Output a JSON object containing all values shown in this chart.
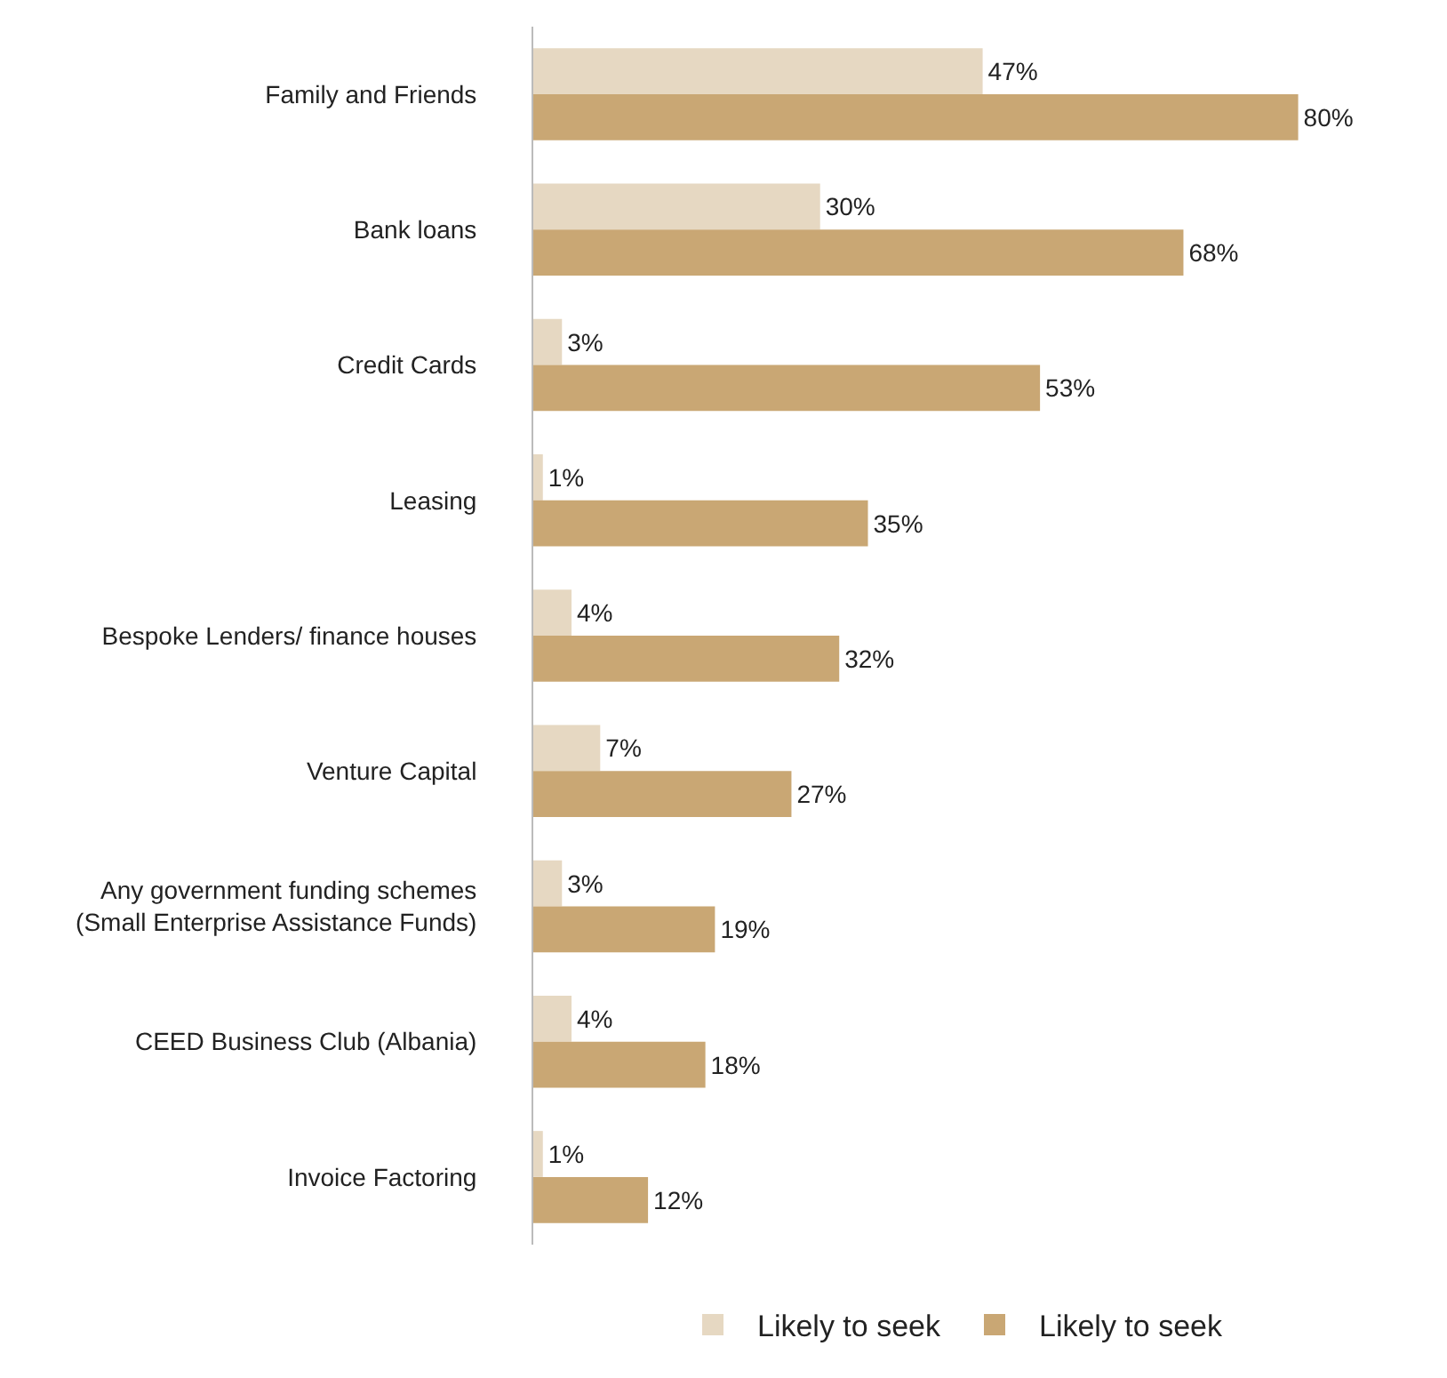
{
  "chart_data": {
    "type": "bar",
    "orientation": "horizontal",
    "categories": [
      "Family and Friends",
      "Bank loans",
      "Credit Cards",
      "Leasing",
      "Bespoke Lenders/ finance houses",
      "Venture Capital",
      "Any government funding schemes\n(Small Enterprise Assistance Funds)",
      "CEED Business Club (Albania)",
      "Invoice Factoring"
    ],
    "series": [
      {
        "name": "Likely to seek",
        "color": "#e6d8c2",
        "values": [
          47,
          30,
          3,
          1,
          4,
          7,
          3,
          4,
          1
        ],
        "value_labels": [
          "47%",
          "30%",
          "3%",
          "1%",
          "4%",
          "7%",
          "3%",
          "4%",
          "1%"
        ]
      },
      {
        "name": "Likely to seek",
        "color": "#c9a774",
        "values": [
          80,
          68,
          53,
          35,
          32,
          27,
          19,
          18,
          12
        ],
        "value_labels": [
          "80%",
          "68%",
          "53%",
          "35%",
          "32%",
          "27%",
          "19%",
          "18%",
          "12%"
        ]
      }
    ],
    "legend": "bottom",
    "tick_labels": "y"
  }
}
